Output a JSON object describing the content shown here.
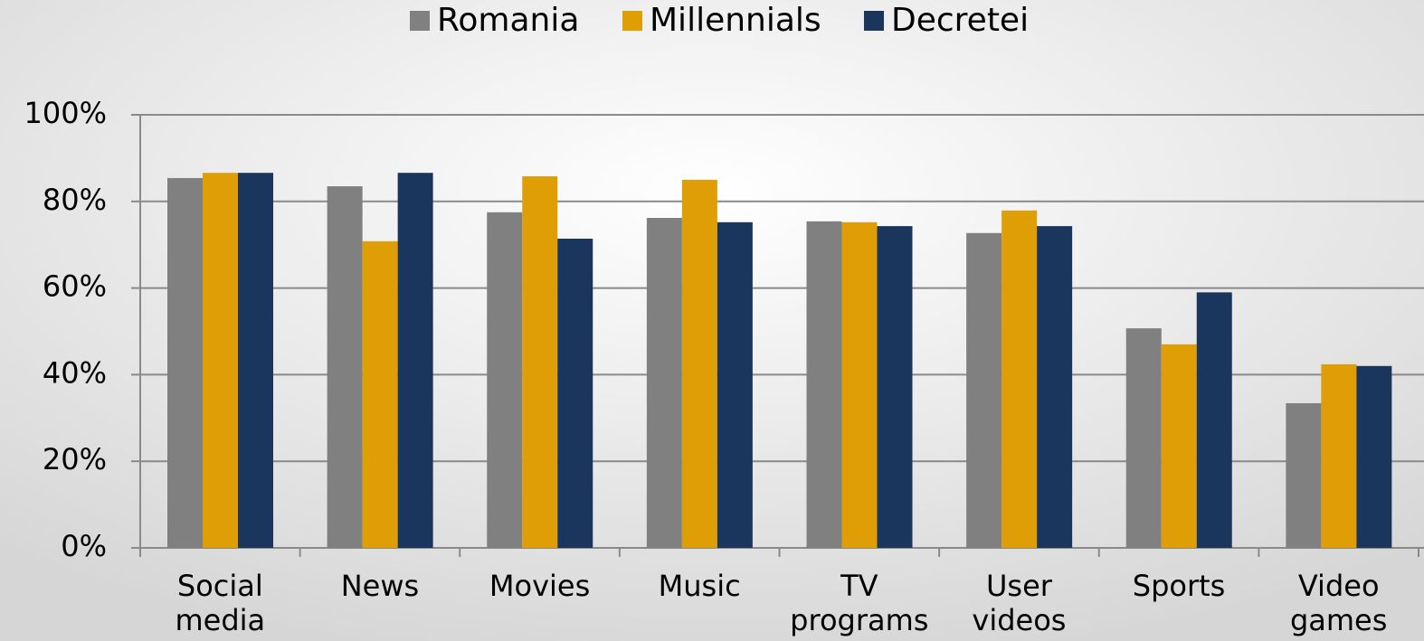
{
  "chart_data": {
    "type": "bar",
    "categories": [
      "Social media",
      "News",
      "Movies",
      "Music",
      "TV programs",
      "User videos",
      "Sports",
      "Video games"
    ],
    "series": [
      {
        "name": "Romania",
        "color": "#808080",
        "values": [
          85.4,
          83.5,
          77.5,
          76.2,
          75.4,
          72.7,
          50.7,
          33.4
        ]
      },
      {
        "name": "Millennials",
        "color": "#e09e06",
        "values": [
          86.6,
          70.8,
          85.8,
          85,
          75.2,
          77.9,
          47,
          42.4
        ]
      },
      {
        "name": "Decretei",
        "color": "#1a365d",
        "values": [
          86.6,
          86.6,
          71.4,
          75.2,
          74.3,
          74.3,
          59,
          42
        ]
      }
    ],
    "ylim": [
      0,
      100
    ],
    "yticks": [
      {
        "value": 0,
        "label": "0%"
      },
      {
        "value": 20,
        "label": "20%"
      },
      {
        "value": 40,
        "label": "40%"
      },
      {
        "value": 60,
        "label": "60%"
      },
      {
        "value": 80,
        "label": "80%"
      },
      {
        "value": 100,
        "label": "100%"
      }
    ],
    "grid": true,
    "legend": "top"
  }
}
